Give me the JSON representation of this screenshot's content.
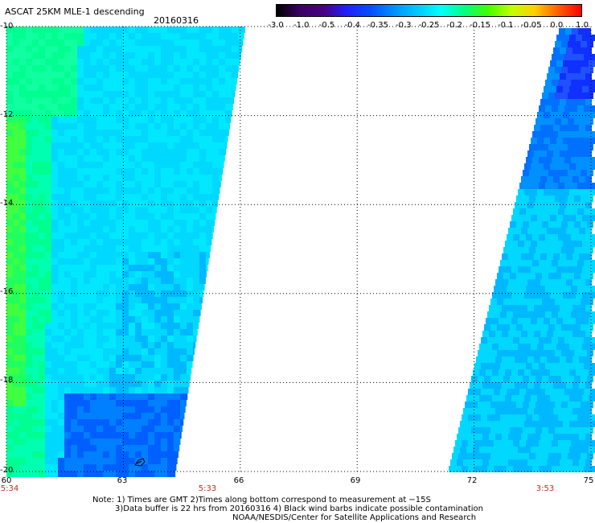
{
  "header": {
    "title": "ASCAT 25KM MLE-1 descending",
    "date": "20160316"
  },
  "colorbar": {
    "labels": [
      "-3.0",
      "-1.0",
      "-0.5",
      "-0.4",
      "-0.35",
      "-0.3",
      "-0.25",
      "-0.2",
      "-0.15",
      "-0.1",
      "-0.05",
      "0.0",
      "1.0"
    ],
    "colors": [
      "#000000",
      "#3c0064",
      "#4b0082",
      "#2020ff",
      "#0050ff",
      "#0090ff",
      "#00c8ff",
      "#00ffff",
      "#00ff80",
      "#40ff00",
      "#c0ff00",
      "#ffd000",
      "#ff6000",
      "#ff0000"
    ]
  },
  "map": {
    "lat_labels": [
      "-10",
      "-12",
      "-14",
      "-16",
      "-18",
      "-20"
    ],
    "lon_labels": [
      "60",
      "63",
      "66",
      "69",
      "72",
      "75"
    ],
    "time_labels": [
      "5:34",
      "5:33",
      "3:53"
    ]
  },
  "notes": {
    "line1": "Note: 1) Times are GMT 2)Times along bottom correspond to measurement at −15S",
    "line2": "3)Data buffer is 22 hrs from 20160316 4) Black wind barbs indicate possible contamination",
    "line3": "NOAA/NESDIS/Center for Satellite Applications and Research"
  }
}
